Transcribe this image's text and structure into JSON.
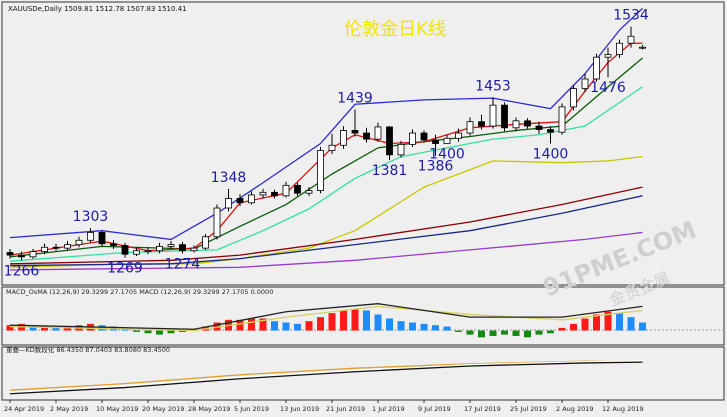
{
  "header": {
    "symbol_info": "XAUUSDe,Daily  1509.81 1512.78 1507.83 1510.41",
    "title": "伦敦金日K线",
    "watermark": "91PME.COM",
    "watermark_cn": "金贵金属"
  },
  "chart_data": [
    {
      "type": "candlestick",
      "categories": [
        "24 Apr 2019",
        null,
        null,
        null,
        "2 May 2019",
        null,
        null,
        null,
        "10 May 2019",
        null,
        null,
        null,
        "20 May 2019",
        null,
        null,
        null,
        "28 May 2019",
        null,
        null,
        null,
        "5 Jun 2019",
        null,
        null,
        null,
        "13 Jun 2019",
        null,
        null,
        null,
        "21 Jun 2019",
        null,
        null,
        null,
        "1 Jul 2019",
        null,
        null,
        null,
        "9 Jul 2019",
        null,
        null,
        null,
        "17 Jul 2019",
        null,
        null,
        null,
        "25 Jul 2019",
        null,
        null,
        null,
        "2 Aug 2019",
        null,
        null,
        null,
        "12 Aug 2019",
        null,
        null,
        null
      ],
      "open": [
        1275,
        1272,
        1270,
        1276,
        1281,
        1280,
        1284,
        1289,
        1298,
        1285,
        1283,
        1273,
        1277,
        1277,
        1282,
        1284,
        1277,
        1280,
        1293,
        1326,
        1337,
        1332,
        1341,
        1344,
        1340,
        1352,
        1343,
        1346,
        1392,
        1398,
        1415,
        1412,
        1405,
        1419,
        1387,
        1399,
        1412,
        1404,
        1400,
        1406,
        1412,
        1425,
        1420,
        1444,
        1418,
        1426,
        1420,
        1416,
        1413,
        1442,
        1463,
        1474,
        1499,
        1502,
        1515,
        1509.81
      ],
      "high": [
        1279,
        1276,
        1279,
        1285,
        1285,
        1288,
        1293,
        1303,
        1300,
        1289,
        1286,
        1281,
        1281,
        1286,
        1288,
        1287,
        1283,
        1296,
        1330,
        1348,
        1342,
        1345,
        1348,
        1347,
        1356,
        1355,
        1350,
        1396,
        1411,
        1420,
        1439,
        1418,
        1424,
        1420,
        1403,
        1416,
        1415,
        1410,
        1410,
        1417,
        1430,
        1433,
        1453,
        1447,
        1430,
        1429,
        1425,
        1420,
        1446,
        1467,
        1480,
        1503,
        1510,
        1519,
        1534,
        1512.78
      ],
      "low": [
        1268,
        1266,
        1268,
        1273,
        1277,
        1277,
        1281,
        1286,
        1282,
        1279,
        1269,
        1271,
        1273,
        1274,
        1279,
        1274,
        1275,
        1278,
        1290,
        1322,
        1328,
        1330,
        1337,
        1337,
        1338,
        1340,
        1340,
        1343,
        1388,
        1394,
        1408,
        1401,
        1402,
        1381,
        1384,
        1396,
        1401,
        1386,
        1400,
        1402,
        1409,
        1416,
        1417,
        1414,
        1414,
        1417,
        1411,
        1400,
        1410,
        1438,
        1459,
        1471,
        1476,
        1498,
        1510,
        1507.83
      ],
      "close": [
        1272,
        1270,
        1276,
        1281,
        1280,
        1284,
        1289,
        1298,
        1285,
        1283,
        1273,
        1277,
        1277,
        1282,
        1284,
        1277,
        1280,
        1293,
        1326,
        1337,
        1332,
        1341,
        1344,
        1340,
        1352,
        1343,
        1346,
        1392,
        1398,
        1415,
        1412,
        1405,
        1419,
        1387,
        1399,
        1412,
        1404,
        1400,
        1406,
        1412,
        1425,
        1420,
        1444,
        1418,
        1426,
        1420,
        1416,
        1413,
        1442,
        1463,
        1474,
        1499,
        1502,
        1515,
        1523,
        1510.41
      ],
      "price_labels": [
        {
          "index": 1,
          "value": 1266
        },
        {
          "index": 7,
          "value": 1303
        },
        {
          "index": 10,
          "value": 1269
        },
        {
          "index": 15,
          "value": 1274
        },
        {
          "index": 19,
          "value": 1348
        },
        {
          "index": 30,
          "value": 1439
        },
        {
          "index": 33,
          "value": 1381
        },
        {
          "index": 37,
          "value": 1386
        },
        {
          "index": 38,
          "value": 1400
        },
        {
          "index": 42,
          "value": 1453
        },
        {
          "index": 47,
          "value": 1400
        },
        {
          "index": 52,
          "value": 1476
        },
        {
          "index": 54,
          "value": 1534
        }
      ],
      "lines": [
        {
          "color": "#2a2ad8",
          "x": [
            0,
            8,
            14,
            18,
            22,
            27,
            30,
            36,
            42,
            47,
            50,
            53,
            55
          ],
          "values": [
            1292,
            1300,
            1290,
            1320,
            1355,
            1400,
            1445,
            1450,
            1452,
            1440,
            1480,
            1530,
            1555
          ]
        },
        {
          "color": "#c8c800",
          "x": [
            0,
            10,
            16,
            20,
            26,
            30,
            36,
            42,
            48,
            52,
            55
          ],
          "values": [
            1258,
            1262,
            1262,
            1268,
            1280,
            1300,
            1350,
            1380,
            1378,
            1380,
            1385
          ]
        },
        {
          "color": "#8b0000",
          "x": [
            0,
            14,
            20,
            30,
            40,
            48,
            55
          ],
          "values": [
            1262,
            1266,
            1272,
            1290,
            1310,
            1330,
            1350
          ]
        },
        {
          "color": "#1a2a80",
          "x": [
            0,
            14,
            20,
            30,
            40,
            48,
            55
          ],
          "values": [
            1260,
            1262,
            1268,
            1284,
            1300,
            1320,
            1340
          ]
        },
        {
          "color": "#9a3ad0",
          "x": [
            0,
            20,
            30,
            40,
            50,
            55
          ],
          "values": [
            1255,
            1258,
            1266,
            1278,
            1290,
            1298
          ]
        },
        {
          "color": "#33e0a0",
          "x": [
            0,
            10,
            18,
            22,
            26,
            30,
            34,
            38,
            42,
            46,
            50,
            55
          ],
          "values": [
            1265,
            1275,
            1278,
            1300,
            1325,
            1360,
            1385,
            1395,
            1405,
            1410,
            1420,
            1465
          ]
        },
        {
          "color": "#0a5a0a",
          "x": [
            0,
            8,
            16,
            20,
            24,
            28,
            32,
            36,
            40,
            44,
            48,
            52,
            55
          ],
          "values": [
            1270,
            1282,
            1279,
            1305,
            1330,
            1365,
            1395,
            1402,
            1408,
            1415,
            1420,
            1465,
            1498
          ]
        },
        {
          "color": "#e01010",
          "x": [
            0,
            4,
            8,
            12,
            16,
            18,
            20,
            24,
            28,
            30,
            33,
            36,
            40,
            44,
            48,
            50,
            52,
            54,
            55
          ],
          "values": [
            1272,
            1280,
            1288,
            1277,
            1280,
            1300,
            1332,
            1343,
            1395,
            1410,
            1400,
            1402,
            1418,
            1422,
            1425,
            1460,
            1493,
            1515,
            1515
          ]
        }
      ],
      "ylim": [
        1240,
        1560
      ]
    },
    {
      "type": "bar",
      "title": "MACD_OsMA (12,26,9) 29.3299 27.1705  MACD (12,26,9) 29.3299 27.1705 0.0000",
      "values": [
        4,
        5,
        3,
        3,
        2,
        3,
        4,
        5,
        4,
        3,
        1,
        -1,
        -2,
        -3,
        -2,
        -1,
        1,
        3,
        6,
        8,
        8,
        9,
        9,
        7,
        6,
        5,
        7,
        10,
        13,
        15,
        16,
        15,
        12,
        9,
        7,
        6,
        5,
        4,
        3,
        -1,
        -3,
        -5,
        -4,
        -3,
        -4,
        -5,
        -3,
        -2,
        2,
        5,
        9,
        12,
        14,
        13,
        10,
        6
      ],
      "rise_color": "#ff1a1a",
      "fall_color": "#1e8cff",
      "negative_color": "#128a12",
      "lines": [
        {
          "color": "#d8d060",
          "x": [
            0,
            16,
            24,
            32,
            40,
            48,
            55
          ],
          "values": [
            3,
            0,
            10,
            18,
            12,
            8,
            15
          ]
        },
        {
          "color": "#222222",
          "x": [
            0,
            16,
            24,
            32,
            40,
            48,
            55
          ],
          "values": [
            4,
            1,
            14,
            20,
            10,
            10,
            18
          ]
        }
      ],
      "ylim": [
        -10,
        25
      ]
    },
    {
      "type": "line",
      "title": "重叠—KD数段化 86.4350 87.0403 83.8080 83.4500",
      "lines": [
        {
          "color": "#e0a030",
          "x": [
            0,
            10,
            20,
            30,
            40,
            50,
            55
          ],
          "values": [
            20,
            35,
            55,
            70,
            80,
            86,
            86.435
          ]
        },
        {
          "color": "#ffffff",
          "x": [
            0,
            10,
            20,
            30,
            40,
            50,
            55
          ],
          "values": [
            15,
            30,
            50,
            65,
            78,
            85,
            87.0403
          ]
        },
        {
          "color": "#111111",
          "x": [
            0,
            10,
            20,
            30,
            40,
            50,
            55
          ],
          "values": [
            12,
            26,
            46,
            62,
            75,
            82,
            83.808
          ]
        }
      ],
      "ylim": [
        0,
        100
      ]
    }
  ]
}
